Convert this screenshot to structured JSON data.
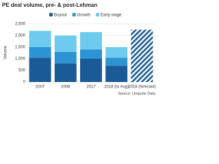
{
  "chart_data": {
    "type": "stacked_bar",
    "title": "PE deal volume, pre- & post-Lehman",
    "y_label": "Volume",
    "source": "Source: Unquote Data",
    "categories": [
      "2007",
      "2008",
      "2017",
      "2018 (to Aug)",
      "2018 (forecast)"
    ],
    "series": [
      {
        "name": "Buyout",
        "color": "#1a5a96",
        "values": [
          1050,
          800,
          1000,
          700,
          null
        ]
      },
      {
        "name": "Growth",
        "color": "#2c94d2",
        "values": [
          450,
          500,
          400,
          350,
          null
        ]
      },
      {
        "name": "Early-stage",
        "color": "#6fcbee",
        "values": [
          700,
          700,
          750,
          450,
          null
        ]
      }
    ],
    "forecast_values": [
      null,
      null,
      null,
      null,
      2250
    ],
    "forecast_color": "#1a5a96",
    "ylim": [
      0,
      2500
    ],
    "yticks": [
      0,
      500,
      {
        "value": 1000,
        "label": "1,000"
      },
      {
        "value": 1500,
        "label": "1,500"
      },
      {
        "value": 2000,
        "label": "2,000"
      },
      {
        "value": 2500,
        "label": "2,500"
      }
    ],
    "grid": true
  }
}
